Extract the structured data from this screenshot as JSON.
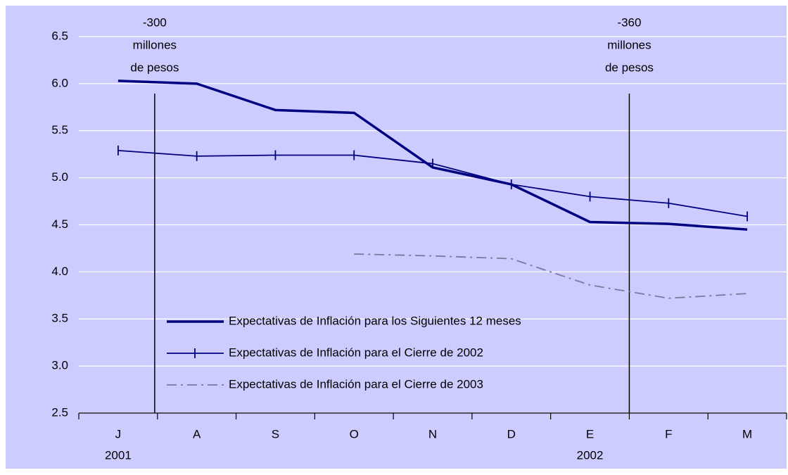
{
  "chart_data": {
    "type": "line",
    "categories": [
      "J",
      "A",
      "S",
      "O",
      "N",
      "D",
      "E",
      "F",
      "M"
    ],
    "year_labels": [
      "2001",
      null,
      null,
      null,
      null,
      null,
      "2002",
      null,
      null
    ],
    "series": [
      {
        "name": "Expectativas de Inflación para los Siguientes 12 meses",
        "color": "#000080",
        "style": "thick",
        "values": [
          6.03,
          6.0,
          5.72,
          5.69,
          5.11,
          4.93,
          4.53,
          4.51,
          4.45
        ]
      },
      {
        "name": "Expectativas de Inflación para el Cierre de 2002",
        "color": "#000080",
        "style": "tick-markers",
        "values": [
          5.29,
          5.23,
          5.24,
          5.24,
          5.15,
          4.93,
          4.8,
          4.73,
          4.59
        ]
      },
      {
        "name": "Expectativas de Inflación para el Cierre de 2003",
        "color": "#7a7a9c",
        "style": "dash-dot",
        "values": [
          null,
          null,
          null,
          4.19,
          4.17,
          4.14,
          3.86,
          3.72,
          3.77
        ]
      }
    ],
    "annotations": [
      {
        "text": [
          "-300",
          "millones",
          "de pesos"
        ]
      },
      {
        "text": [
          "-360",
          "millones",
          "de pesos"
        ]
      }
    ],
    "ylim": [
      2.5,
      6.5
    ],
    "yticks": [
      2.5,
      {
        "value": 3,
        "label": "3.0"
      },
      3.5,
      {
        "value": 4,
        "label": "4.0"
      },
      4.5,
      {
        "value": 5,
        "label": "5.0"
      },
      5.5,
      {
        "value": 6,
        "label": "6.0"
      },
      6.5
    ],
    "grid": true,
    "legend": "lower left"
  }
}
